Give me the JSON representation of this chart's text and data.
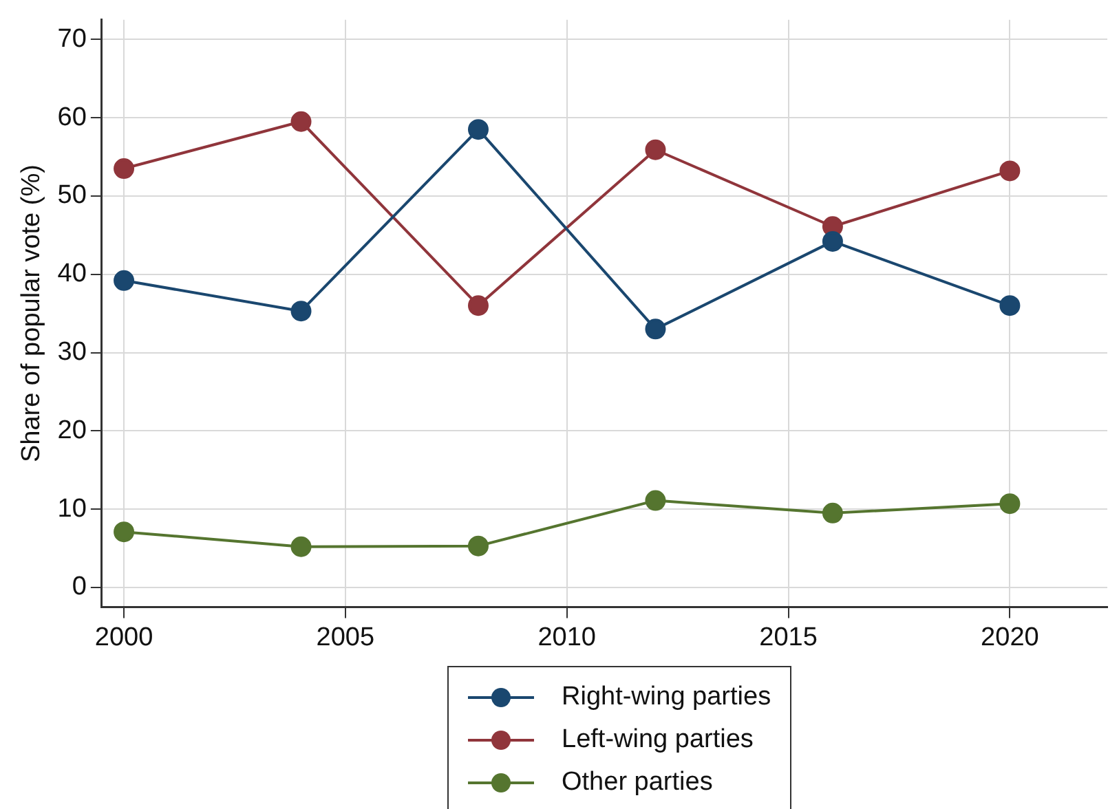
{
  "chart_data": {
    "type": "line",
    "ylabel": "Share of popular vote (%)",
    "x": [
      2000,
      2004,
      2008,
      2012,
      2016,
      2020
    ],
    "series": [
      {
        "name": "Right-wing parties",
        "color": "#1a476f",
        "values": [
          39.2,
          35.3,
          58.5,
          33.0,
          44.2,
          36.0
        ]
      },
      {
        "name": "Left-wing parties",
        "color": "#90353b",
        "values": [
          53.5,
          59.5,
          36.0,
          55.9,
          46.1,
          53.2
        ]
      },
      {
        "name": "Other parties",
        "color": "#55752f",
        "values": [
          7.1,
          5.2,
          5.3,
          11.1,
          9.5,
          10.7
        ]
      }
    ],
    "xlim": [
      1999.5,
      2022.2
    ],
    "xticks": [
      2000,
      2005,
      2010,
      2015,
      2020
    ],
    "ylim": [
      -2.5,
      72.5
    ],
    "yticks": [
      0,
      10,
      20,
      30,
      40,
      50,
      60,
      70
    ],
    "grid": true,
    "legend": "bottom",
    "marker": "circle",
    "line_style": "solid"
  }
}
